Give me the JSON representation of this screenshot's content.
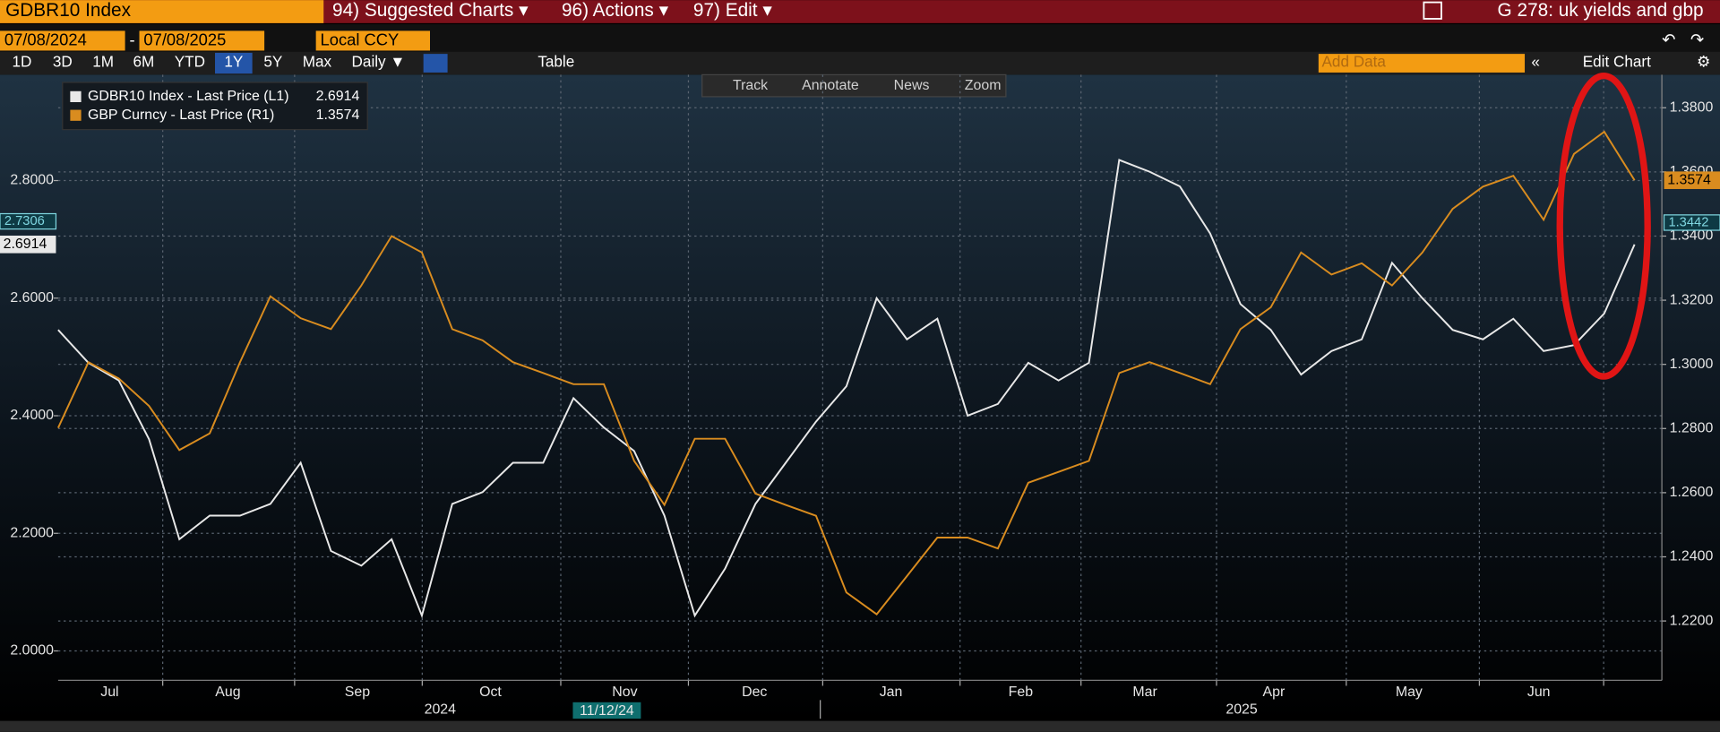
{
  "toolbar": {
    "security": "GDBR10 Index",
    "menus": [
      "94) Suggested Charts ▾",
      "96) Actions ▾",
      "97) Edit ▾"
    ],
    "chart_name": "G 278: uk yields and gbp",
    "start_date": "07/08/2024",
    "date_separator": "-",
    "end_date": "07/08/2025",
    "currency": "Local CCY",
    "periods": [
      "1D",
      "3D",
      "1M",
      "6M",
      "YTD",
      "1Y",
      "5Y",
      "Max"
    ],
    "frequency": "Daily ▼",
    "table": "Table",
    "add_data": "Add Data",
    "edit_chart": "Edit Chart",
    "chart_tools": [
      "Track",
      "Annotate",
      "News",
      "Zoom"
    ]
  },
  "chart_data": {
    "type": "line",
    "series": [
      {
        "name": "GDBR10 Index - Last Price (L1)",
        "color": "#e8e8e8",
        "axis": "y",
        "values": [
          2.546,
          2.49,
          2.46,
          2.36,
          2.19,
          2.23,
          2.23,
          2.25,
          2.32,
          2.17,
          2.145,
          2.19,
          2.06,
          2.25,
          2.27,
          2.32,
          2.32,
          2.43,
          2.38,
          2.34,
          2.23,
          2.06,
          2.14,
          2.25,
          2.32,
          2.39,
          2.45,
          2.6,
          2.53,
          2.565,
          2.4,
          2.42,
          2.49,
          2.46,
          2.49,
          2.835,
          2.815,
          2.79,
          2.71,
          2.59,
          2.546,
          2.47,
          2.51,
          2.53,
          2.66,
          2.6,
          2.546,
          2.53,
          2.565,
          2.51,
          2.52,
          2.574,
          2.6914
        ]
      },
      {
        "name": "GBP Curncy - Last Price (R1)",
        "color": "#d98c1f",
        "axis": "y2",
        "values": [
          1.2802,
          1.3007,
          1.2956,
          1.287,
          1.2733,
          1.2785,
          1.3007,
          1.3212,
          1.3144,
          1.311,
          1.3246,
          1.34,
          1.3349,
          1.311,
          1.3075,
          1.3007,
          1.2973,
          1.2938,
          1.2938,
          1.2699,
          1.2562,
          1.2768,
          1.2768,
          1.2597,
          1.2562,
          1.2528,
          1.2289,
          1.2221,
          1.234,
          1.246,
          1.246,
          1.2426,
          1.2631,
          1.2665,
          1.2699,
          1.2973,
          1.3007,
          1.2973,
          1.2938,
          1.311,
          1.3178,
          1.3349,
          1.328,
          1.3315,
          1.3246,
          1.3349,
          1.3485,
          1.3554,
          1.3588,
          1.3451,
          1.3656,
          1.3725,
          1.3574
        ]
      }
    ],
    "xlim": [
      0,
      52.9
    ],
    "xticks": [
      {
        "value": 1.7,
        "label": "Jul"
      },
      {
        "value": 5.6,
        "label": "Aug"
      },
      {
        "value": 9.87,
        "label": "Sep"
      },
      {
        "value": 14.26,
        "label": "Oct"
      },
      {
        "value": 18.69,
        "label": "Nov"
      },
      {
        "value": 22.97,
        "label": "Dec"
      },
      {
        "value": 27.47,
        "label": "Jan"
      },
      {
        "value": 31.75,
        "label": "Feb"
      },
      {
        "value": 35.85,
        "label": "Mar"
      },
      {
        "value": 40.1,
        "label": "Apr"
      },
      {
        "value": 44.56,
        "label": "May"
      },
      {
        "value": 48.84,
        "label": "Jun"
      }
    ],
    "xgrid": [
      3.45,
      7.8,
      12.01,
      16.58,
      20.79,
      25.22,
      29.75,
      33.74,
      38.21,
      42.49,
      46.88,
      50.98
    ],
    "year_labels": [
      {
        "value": 12.6,
        "label": "2024"
      },
      {
        "value": 39.04,
        "label": "2025"
      }
    ],
    "year_divider": 25.14,
    "cursor_label": {
      "value": 18.1,
      "label": "11/12/24"
    },
    "ylim": [
      1.95,
      2.98
    ],
    "yticks": [
      {
        "value": 2.0,
        "label": "2.0000"
      },
      {
        "value": 2.2,
        "label": "2.2000"
      },
      {
        "value": 2.4,
        "label": "2.4000"
      },
      {
        "value": 2.6,
        "label": "2.6000"
      },
      {
        "value": 2.8,
        "label": "2.8000"
      }
    ],
    "y2lim": [
      1.2015,
      1.3903
    ],
    "y2ticks": [
      {
        "value": 1.22,
        "label": "1.2200"
      },
      {
        "value": 1.24,
        "label": "1.2400"
      },
      {
        "value": 1.26,
        "label": "1.2600"
      },
      {
        "value": 1.28,
        "label": "1.2800"
      },
      {
        "value": 1.3,
        "label": "1.3000"
      },
      {
        "value": 1.32,
        "label": "1.3200"
      },
      {
        "value": 1.34,
        "label": "1.3400"
      },
      {
        "value": 1.36,
        "label": "1.3600"
      },
      {
        "value": 1.38,
        "label": "1.3800"
      }
    ],
    "markers": [
      {
        "axis": "y",
        "value": 2.7306,
        "color": "#7fd6e0"
      },
      {
        "axis": "y2",
        "value": 1.3442,
        "color": "#7fd6e0"
      }
    ],
    "grid": true,
    "legend": "top-left"
  }
}
